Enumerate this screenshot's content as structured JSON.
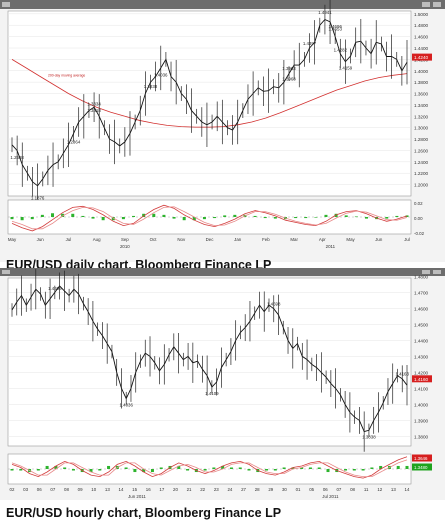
{
  "window_label": "",
  "charts": [
    {
      "caption": "EUR/USD daily chart, Bloomberg Finance LP",
      "chart_data": {
        "type": "line",
        "title": "",
        "xlabel": "",
        "ylabel": "",
        "ylim": [
          1.18,
          1.505
        ],
        "y_ticks": [
          "1.5000",
          "1.4800",
          "1.4600",
          "1.4400",
          "1.4200",
          "1.4000",
          "1.3800",
          "1.3600",
          "1.3400",
          "1.3200",
          "1.3000",
          "1.2800",
          "1.2600",
          "1.2400",
          "1.2200",
          "1.2000"
        ],
        "x_month_labels": [
          "May",
          "Jun",
          "Jul",
          "Aug",
          "Sep",
          "Oct",
          "Nov",
          "Dec",
          "Jan",
          "Feb",
          "Mar",
          "Apr",
          "May",
          "Jun",
          "Jul"
        ],
        "x_year_labels": [
          "2010",
          "2011"
        ],
        "ma_label": "200-day moving average",
        "price_tag": "1.4240",
        "series": [
          {
            "values": [
              1.27,
              1.26,
              1.235,
              1.22,
              1.205,
              1.198,
              1.21,
              1.225,
              1.235,
              1.24,
              1.255,
              1.27,
              1.29,
              1.31,
              1.32,
              1.33,
              1.336,
              1.32,
              1.3,
              1.28,
              1.275,
              1.268,
              1.275,
              1.29,
              1.31,
              1.33,
              1.36,
              1.38,
              1.39,
              1.405,
              1.42,
              1.39,
              1.38,
              1.36,
              1.35,
              1.33,
              1.32,
              1.31,
              1.305,
              1.31,
              1.32,
              1.31,
              1.3,
              1.296,
              1.31,
              1.33,
              1.35,
              1.36,
              1.37,
              1.364,
              1.365,
              1.372,
              1.37,
              1.38,
              1.395,
              1.41,
              1.41,
              1.42,
              1.44,
              1.45,
              1.48,
              1.49,
              1.486,
              1.46,
              1.43,
              1.416,
              1.426,
              1.45,
              1.452,
              1.44,
              1.43,
              1.45,
              1.447,
              1.425,
              1.425,
              1.42,
              1.4,
              1.415
            ],
            "low_label_values": [
              1.1876,
              1.2588,
              1.2864,
              1.3418,
              1.4159,
              1.3968,
              1.4036,
              1.3838
            ],
            "high_label_values": [
              1.3334,
              1.4282,
              1.3963,
              1.4653,
              1.4941,
              1.4696,
              1.4397
            ]
          },
          {
            "name": "200-day moving average",
            "values": [
              1.42,
              1.405,
              1.39,
              1.375,
              1.36,
              1.347,
              1.336,
              1.327,
              1.32,
              1.313,
              1.308,
              1.304,
              1.302,
              1.301,
              1.301,
              1.302,
              1.305,
              1.31,
              1.317,
              1.326,
              1.336,
              1.346,
              1.356,
              1.366,
              1.374,
              1.382,
              1.388,
              1.392,
              1.395
            ]
          }
        ],
        "indicator": {
          "ylim": [
            -0.035,
            0.035
          ],
          "y_ticks": [
            "0.02",
            "0.00",
            "-0.02"
          ],
          "series": [
            {
              "values": [
                -0.012,
                -0.02,
                -0.026,
                -0.018,
                -0.005,
                0.008,
                0.018,
                0.02,
                0.014,
                0.004,
                -0.008,
                -0.016,
                -0.012,
                0.002,
                0.014,
                0.022,
                0.016,
                0.004,
                -0.006,
                -0.014,
                -0.018,
                -0.012,
                -0.004,
                0.006,
                0.012,
                0.008,
                0.002,
                -0.006,
                -0.01,
                -0.014,
                -0.016,
                -0.008,
                0.004,
                0.01,
                0.012,
                0.006,
                -0.002,
                -0.008,
                -0.004,
                0.002
              ]
            },
            {
              "values": [
                -0.008,
                -0.014,
                -0.022,
                -0.022,
                -0.012,
                0.002,
                0.012,
                0.018,
                0.017,
                0.01,
                -0.002,
                -0.012,
                -0.014,
                -0.004,
                0.008,
                0.018,
                0.019,
                0.01,
                0,
                -0.01,
                -0.016,
                -0.015,
                -0.008,
                0.002,
                0.01,
                0.01,
                0.005,
                -0.002,
                -0.008,
                -0.012,
                -0.015,
                -0.012,
                -0.002,
                0.007,
                0.011,
                0.009,
                0.002,
                -0.005,
                -0.006,
                -0.001
              ]
            }
          ]
        }
      }
    },
    {
      "caption": "EUR/USD hourly chart, Bloomberg Finance LP",
      "chart_data": {
        "type": "line",
        "title": "",
        "xlabel": "",
        "ylabel": "",
        "ylim": [
          1.374,
          1.479
        ],
        "y_ticks": [
          "1.4800",
          "1.4700",
          "1.4600",
          "1.4500",
          "1.4400",
          "1.4300",
          "1.4200",
          "1.4100",
          "1.4000",
          "1.3900",
          "1.3800"
        ],
        "x_tick_labels": [
          "02",
          "03",
          "06",
          "07",
          "08",
          "09",
          "10",
          "13",
          "14",
          "15",
          "16",
          "17",
          "20",
          "21",
          "22",
          "23",
          "24",
          "27",
          "28",
          "29",
          "30",
          "01",
          "05",
          "06",
          "07",
          "08",
          "11",
          "12",
          "13",
          "14"
        ],
        "x_month_labels": [
          "Jun 2011",
          "Jul 2011"
        ],
        "price_tag": "1.4160",
        "series": [
          {
            "values": [
              1.459,
              1.464,
              1.468,
              1.462,
              1.467,
              1.472,
              1.469,
              1.462,
              1.466,
              1.47,
              1.474,
              1.471,
              1.468,
              1.472,
              1.469,
              1.463,
              1.458,
              1.452,
              1.447,
              1.443,
              1.438,
              1.433,
              1.42,
              1.41,
              1.4036,
              1.41,
              1.42,
              1.427,
              1.432,
              1.43,
              1.426,
              1.421,
              1.425,
              1.431,
              1.436,
              1.432,
              1.428,
              1.43,
              1.426,
              1.427,
              1.422,
              1.418,
              1.4109,
              1.414,
              1.423,
              1.428,
              1.433,
              1.44,
              1.445,
              1.448,
              1.452,
              1.457,
              1.462,
              1.458,
              1.462,
              1.4598,
              1.456,
              1.448,
              1.44,
              1.435,
              1.438,
              1.43,
              1.428,
              1.425,
              1.423,
              1.42,
              1.417,
              1.413,
              1.41,
              1.406,
              1.4,
              1.395,
              1.392,
              1.39,
              1.383,
              1.3838,
              1.39,
              1.395,
              1.401,
              1.408,
              1.413,
              1.418,
              1.416,
              1.412
            ],
            "low_label_values": [
              1.4036,
              1.4109,
              1.3838
            ],
            "high_label_values": [
              1.4696,
              1.4598,
              1.4163
            ]
          }
        ],
        "indicator": {
          "y_tags": [
            "1.3646",
            "1.3480"
          ],
          "series": [
            {
              "values": [
                0.3,
                0.1,
                -0.3,
                -0.5,
                -0.2,
                0.2,
                0.5,
                0.3,
                -0.1,
                -0.4,
                -0.5,
                -0.2,
                0.3,
                0.5,
                0.2,
                -0.2,
                -0.5,
                -0.3,
                0.1,
                0.4,
                0.2,
                -0.1,
                -0.3,
                -0.1,
                0.2,
                0.4,
                0.5,
                0.3,
                -0.1,
                -0.3,
                -0.4,
                -0.2,
                0.1,
                0.2,
                0.4,
                0.5,
                0.2,
                -0.1,
                -0.3,
                -0.5,
                -0.6,
                -0.4,
                0,
                0.3,
                0.6,
                0.8
              ]
            },
            {
              "values": [
                0.4,
                0.2,
                -0.1,
                -0.4,
                -0.4,
                0,
                0.4,
                0.4,
                0.1,
                -0.2,
                -0.4,
                -0.4,
                0.1,
                0.4,
                0.4,
                0,
                -0.3,
                -0.4,
                -0.1,
                0.2,
                0.3,
                0.1,
                -0.2,
                -0.2,
                0,
                0.3,
                0.4,
                0.4,
                0.1,
                -0.2,
                -0.3,
                -0.3,
                0,
                0.1,
                0.3,
                0.4,
                0.4,
                0.1,
                -0.2,
                -0.4,
                -0.5,
                -0.5,
                -0.2,
                0.1,
                0.4,
                0.6
              ]
            }
          ]
        }
      }
    }
  ]
}
